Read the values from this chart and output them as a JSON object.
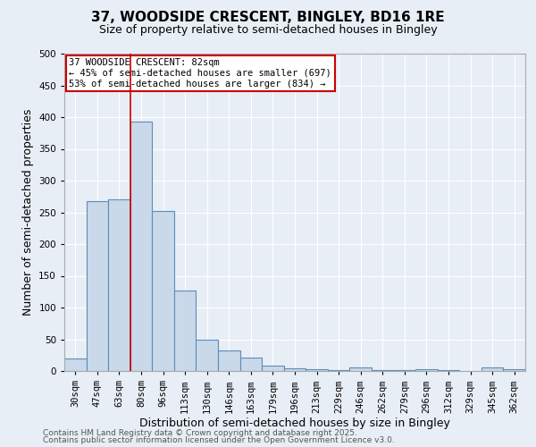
{
  "title": "37, WOODSIDE CRESCENT, BINGLEY, BD16 1RE",
  "subtitle": "Size of property relative to semi-detached houses in Bingley",
  "xlabel": "Distribution of semi-detached houses by size in Bingley",
  "ylabel": "Number of semi-detached properties",
  "categories": [
    "30sqm",
    "47sqm",
    "63sqm",
    "80sqm",
    "96sqm",
    "113sqm",
    "130sqm",
    "146sqm",
    "163sqm",
    "179sqm",
    "196sqm",
    "213sqm",
    "229sqm",
    "246sqm",
    "262sqm",
    "279sqm",
    "296sqm",
    "312sqm",
    "329sqm",
    "345sqm",
    "362sqm"
  ],
  "values": [
    20,
    268,
    270,
    393,
    252,
    127,
    50,
    33,
    21,
    8,
    4,
    3,
    1,
    5,
    1,
    2,
    3,
    1,
    0,
    5,
    3
  ],
  "bar_color": "#c9d9ea",
  "bar_edge_color": "#5b8db8",
  "property_line_color": "#cc0000",
  "annotation_text": "37 WOODSIDE CRESCENT: 82sqm\n← 45% of semi-detached houses are smaller (697)\n53% of semi-detached houses are larger (834) →",
  "annotation_box_color": "#ffffff",
  "annotation_box_edge_color": "#cc0000",
  "ylim": [
    0,
    500
  ],
  "yticks": [
    0,
    50,
    100,
    150,
    200,
    250,
    300,
    350,
    400,
    450,
    500
  ],
  "footnote1": "Contains HM Land Registry data © Crown copyright and database right 2025.",
  "footnote2": "Contains public sector information licensed under the Open Government Licence v3.0.",
  "background_color": "#e8eef5",
  "plot_bg_color": "#e8eef5",
  "title_fontsize": 11,
  "subtitle_fontsize": 9,
  "tick_fontsize": 7.5,
  "label_fontsize": 9,
  "annotation_fontsize": 7.5,
  "footnote_fontsize": 6.5
}
